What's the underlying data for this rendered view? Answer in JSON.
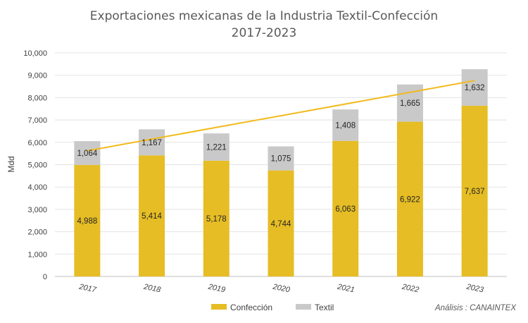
{
  "chart_data": {
    "type": "bar",
    "stacked": true,
    "title": "Exportaciones mexicanas de la Industria Textil-Confección",
    "subtitle": "2017-2023",
    "xlabel": "",
    "ylabel": "Mdd",
    "ylim": [
      0,
      10000
    ],
    "yticks": [
      0,
      1000,
      2000,
      3000,
      4000,
      5000,
      6000,
      7000,
      8000,
      9000,
      10000
    ],
    "ytick_labels": [
      "0",
      "1,000",
      "2,000",
      "3,000",
      "4,000",
      "5,000",
      "6,000",
      "7,000",
      "8,000",
      "9,000",
      "10,000"
    ],
    "grid": true,
    "legend_position": "bottom",
    "categories": [
      "2017",
      "2018",
      "2019",
      "2020",
      "2021",
      "2022",
      "2023"
    ],
    "series": [
      {
        "name": "Confección",
        "color": "#E6BD24",
        "values": [
          4988,
          5414,
          5178,
          4744,
          6063,
          6922,
          7637
        ],
        "labels": [
          "4,988",
          "5,414",
          "5,178",
          "4,744",
          "6,063",
          "6,922",
          "7,637"
        ]
      },
      {
        "name": "Textil",
        "color": "#C9C9C9",
        "values": [
          1064,
          1167,
          1221,
          1075,
          1408,
          1665,
          1632
        ],
        "labels": [
          "1,064",
          "1,167",
          "1,221",
          "1,075",
          "1,408",
          "1,665",
          "1,632"
        ]
      }
    ],
    "trendline": {
      "type": "linear",
      "color": "#F2BA1B",
      "start": 5620,
      "end": 8760
    },
    "annotation": "Análisis : CANAINTEX"
  }
}
